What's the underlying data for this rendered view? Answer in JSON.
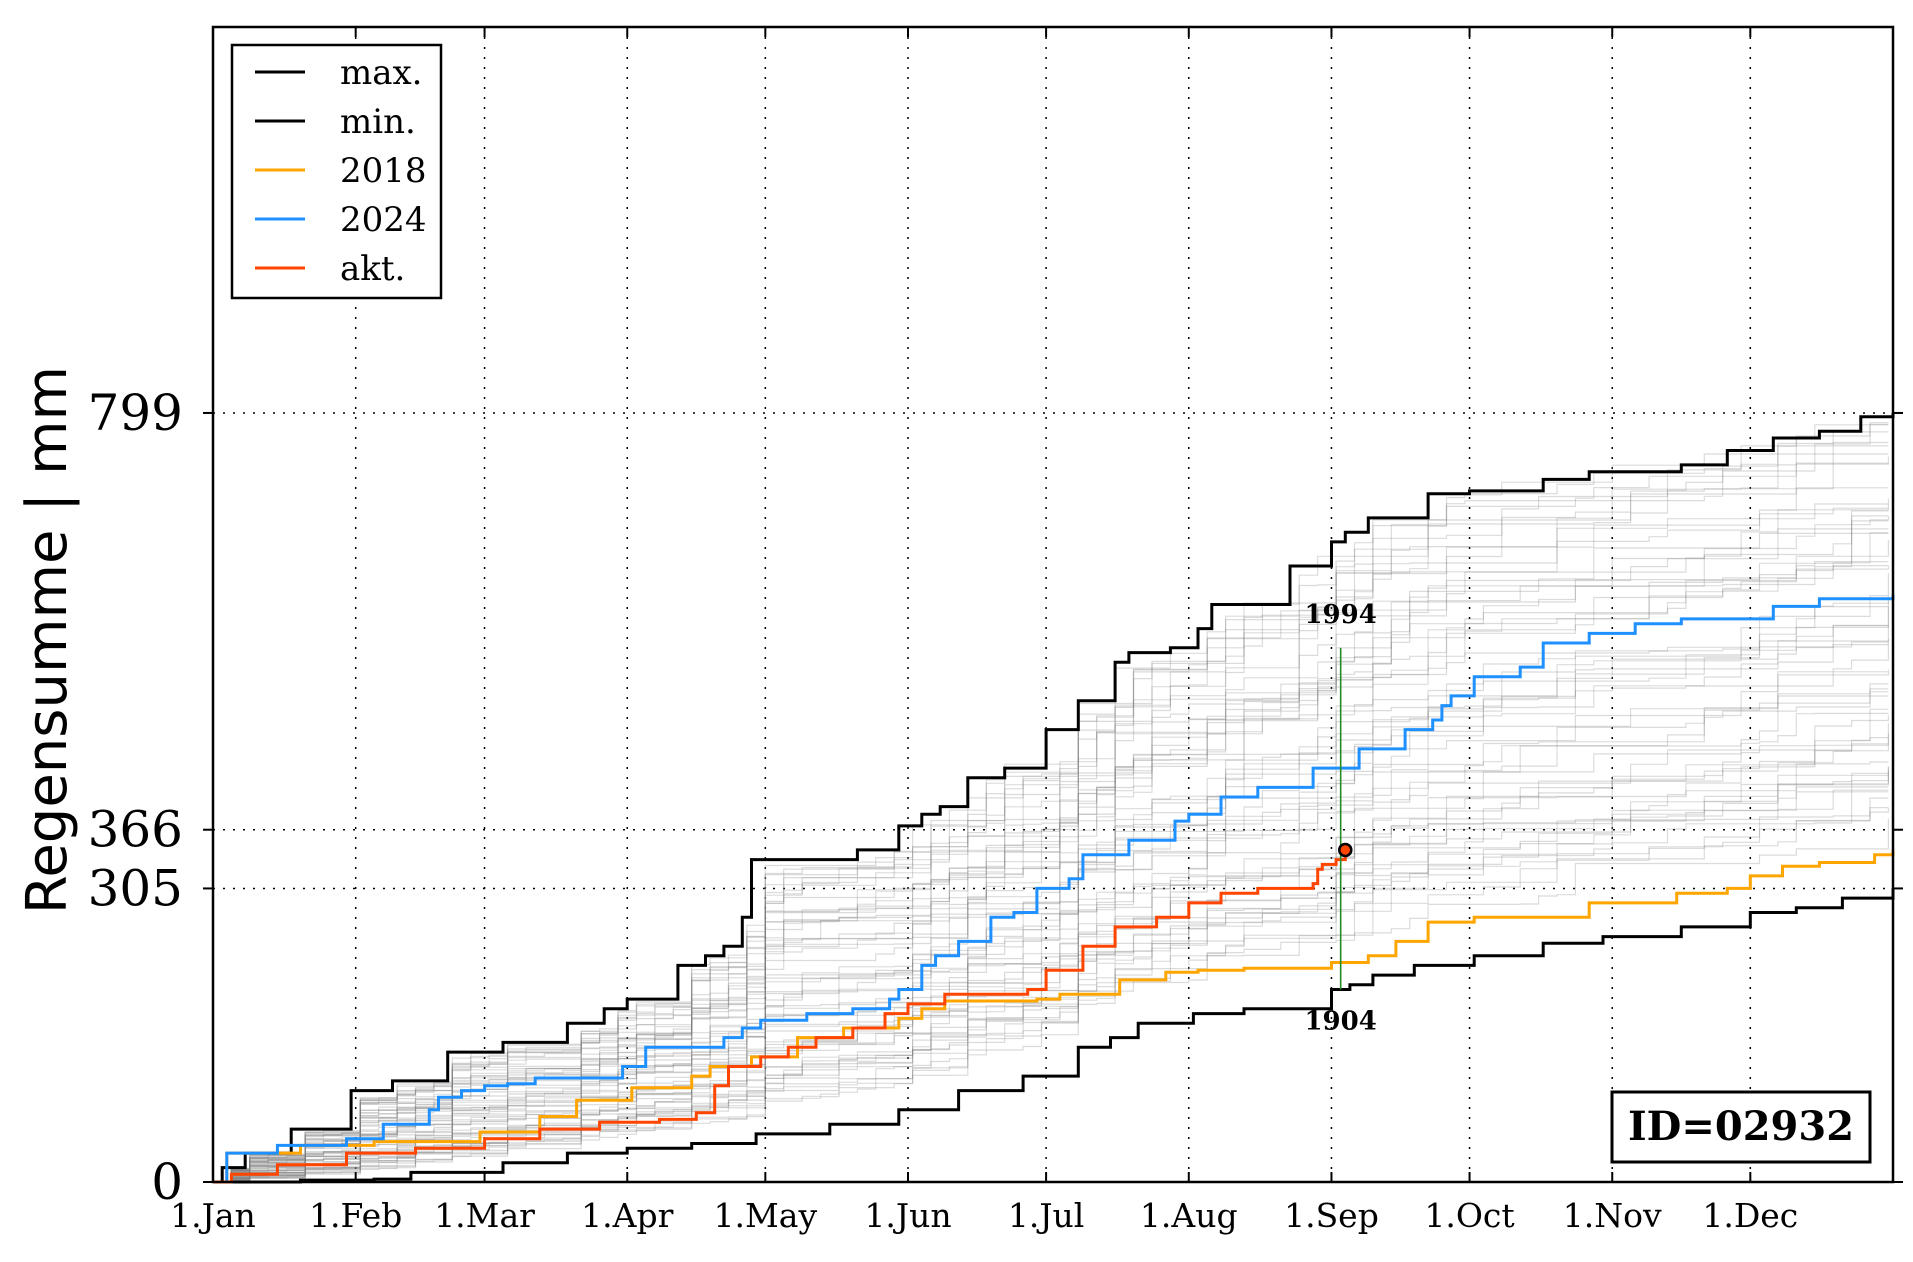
{
  "chart_data": {
    "type": "line",
    "title": "",
    "xlabel": "",
    "ylabel": "Regensumme | mm",
    "x_ticks": [
      "1.Jan",
      "1.Feb",
      "1.Mar",
      "1.Apr",
      "1.May",
      "1.Jun",
      "1.Jul",
      "1.Aug",
      "1.Sep",
      "1.Oct",
      "1.Nov",
      "1.Dec"
    ],
    "x_tick_days": [
      1,
      32,
      60,
      91,
      121,
      152,
      182,
      213,
      244,
      274,
      305,
      335
    ],
    "x_range_days": [
      1,
      366
    ],
    "y_ticks": [
      "0",
      "305",
      "366",
      "799"
    ],
    "y_tick_values": [
      0,
      305,
      366,
      799
    ],
    "ylim": [
      0,
      1200
    ],
    "grid": "dotted, at x ticks and y ticks",
    "legend_position": "top-left",
    "series": [
      {
        "name": "max.",
        "color": "#000000",
        "points": [
          [
            1,
            0
          ],
          [
            3,
            15
          ],
          [
            8,
            30
          ],
          [
            18,
            55
          ],
          [
            31,
            95
          ],
          [
            40,
            105
          ],
          [
            52,
            135
          ],
          [
            64,
            145
          ],
          [
            78,
            165
          ],
          [
            86,
            180
          ],
          [
            91,
            190
          ],
          [
            102,
            225
          ],
          [
            108,
            235
          ],
          [
            112,
            245
          ],
          [
            116,
            275
          ],
          [
            118,
            335
          ],
          [
            122,
            335
          ],
          [
            141,
            345
          ],
          [
            150,
            370
          ],
          [
            155,
            382
          ],
          [
            159,
            390
          ],
          [
            165,
            420
          ],
          [
            173,
            430
          ],
          [
            182,
            470
          ],
          [
            189,
            500
          ],
          [
            197,
            540
          ],
          [
            200,
            550
          ],
          [
            209,
            555
          ],
          [
            215,
            575
          ],
          [
            218,
            600
          ],
          [
            235,
            640
          ],
          [
            244,
            665
          ],
          [
            247,
            675
          ],
          [
            252,
            690
          ],
          [
            265,
            715
          ],
          [
            274,
            718
          ],
          [
            290,
            730
          ],
          [
            300,
            738
          ],
          [
            320,
            745
          ],
          [
            330,
            760
          ],
          [
            340,
            773
          ],
          [
            350,
            780
          ],
          [
            359,
            795
          ],
          [
            366,
            799
          ]
        ]
      },
      {
        "name": "min.",
        "color": "#000000",
        "points": [
          [
            1,
            0
          ],
          [
            20,
            2
          ],
          [
            36,
            3
          ],
          [
            44,
            10
          ],
          [
            64,
            20
          ],
          [
            78,
            30
          ],
          [
            91,
            35
          ],
          [
            105,
            40
          ],
          [
            119,
            50
          ],
          [
            135,
            60
          ],
          [
            150,
            75
          ],
          [
            163,
            95
          ],
          [
            177,
            110
          ],
          [
            189,
            140
          ],
          [
            196,
            150
          ],
          [
            202,
            165
          ],
          [
            214,
            175
          ],
          [
            225,
            180
          ],
          [
            244,
            200
          ],
          [
            248,
            205
          ],
          [
            253,
            215
          ],
          [
            262,
            225
          ],
          [
            275,
            235
          ],
          [
            290,
            248
          ],
          [
            303,
            255
          ],
          [
            320,
            265
          ],
          [
            335,
            280
          ],
          [
            345,
            285
          ],
          [
            355,
            295
          ],
          [
            366,
            305
          ]
        ]
      },
      {
        "name": "2018",
        "color": "#ffa500",
        "points": [
          [
            1,
            0
          ],
          [
            4,
            30
          ],
          [
            20,
            38
          ],
          [
            36,
            42
          ],
          [
            59,
            52
          ],
          [
            72,
            68
          ],
          [
            80,
            85
          ],
          [
            92,
            98
          ],
          [
            105,
            110
          ],
          [
            109,
            120
          ],
          [
            118,
            130
          ],
          [
            128,
            150
          ],
          [
            138,
            160
          ],
          [
            150,
            170
          ],
          [
            155,
            180
          ],
          [
            160,
            188
          ],
          [
            180,
            190
          ],
          [
            185,
            195
          ],
          [
            198,
            210
          ],
          [
            208,
            218
          ],
          [
            215,
            220
          ],
          [
            225,
            222
          ],
          [
            244,
            228
          ],
          [
            252,
            235
          ],
          [
            258,
            250
          ],
          [
            265,
            270
          ],
          [
            275,
            275
          ],
          [
            300,
            290
          ],
          [
            319,
            300
          ],
          [
            330,
            305
          ],
          [
            335,
            318
          ],
          [
            342,
            328
          ],
          [
            350,
            332
          ],
          [
            362,
            340
          ],
          [
            366,
            345
          ]
        ]
      },
      {
        "name": "2024",
        "color": "#1e90ff",
        "points": [
          [
            1,
            0
          ],
          [
            4,
            30
          ],
          [
            15,
            38
          ],
          [
            30,
            45
          ],
          [
            38,
            60
          ],
          [
            48,
            75
          ],
          [
            50,
            88
          ],
          [
            55,
            95
          ],
          [
            60,
            100
          ],
          [
            65,
            102
          ],
          [
            71,
            108
          ],
          [
            90,
            120
          ],
          [
            95,
            140
          ],
          [
            112,
            150
          ],
          [
            116,
            160
          ],
          [
            120,
            168
          ],
          [
            130,
            175
          ],
          [
            140,
            180
          ],
          [
            148,
            190
          ],
          [
            150,
            200
          ],
          [
            155,
            225
          ],
          [
            158,
            235
          ],
          [
            163,
            250
          ],
          [
            170,
            275
          ],
          [
            175,
            280
          ],
          [
            180,
            305
          ],
          [
            187,
            315
          ],
          [
            190,
            340
          ],
          [
            200,
            355
          ],
          [
            210,
            375
          ],
          [
            213,
            382
          ],
          [
            220,
            400
          ],
          [
            228,
            410
          ],
          [
            240,
            430
          ],
          [
            250,
            450
          ],
          [
            260,
            470
          ],
          [
            266,
            480
          ],
          [
            268,
            495
          ],
          [
            270,
            505
          ],
          [
            275,
            525
          ],
          [
            285,
            535
          ],
          [
            290,
            560
          ],
          [
            300,
            570
          ],
          [
            310,
            580
          ],
          [
            320,
            585
          ],
          [
            340,
            598
          ],
          [
            350,
            606
          ],
          [
            366,
            610
          ]
        ]
      },
      {
        "name": "akt.",
        "color": "#ff4500",
        "points": [
          [
            1,
            0
          ],
          [
            5,
            8
          ],
          [
            15,
            18
          ],
          [
            30,
            30
          ],
          [
            45,
            35
          ],
          [
            60,
            45
          ],
          [
            72,
            55
          ],
          [
            85,
            62
          ],
          [
            98,
            65
          ],
          [
            106,
            72
          ],
          [
            110,
            100
          ],
          [
            113,
            120
          ],
          [
            120,
            130
          ],
          [
            126,
            140
          ],
          [
            132,
            150
          ],
          [
            140,
            160
          ],
          [
            147,
            175
          ],
          [
            152,
            185
          ],
          [
            160,
            195
          ],
          [
            178,
            200
          ],
          [
            182,
            220
          ],
          [
            190,
            245
          ],
          [
            197,
            265
          ],
          [
            206,
            275
          ],
          [
            213,
            290
          ],
          [
            220,
            300
          ],
          [
            228,
            305
          ],
          [
            240,
            310
          ],
          [
            241,
            325
          ],
          [
            242,
            330
          ],
          [
            245,
            335
          ],
          [
            247,
            345
          ]
        ]
      }
    ],
    "background_series_note": "many light grey lines for individual historical years",
    "annotations": [
      {
        "text": "1994",
        "x_day": 246,
        "y": 555
      },
      {
        "text": "1904",
        "x_day": 246,
        "y": 200
      }
    ],
    "current_marker": {
      "x_day": 247,
      "y": 345
    },
    "id_box": "ID=02932"
  }
}
